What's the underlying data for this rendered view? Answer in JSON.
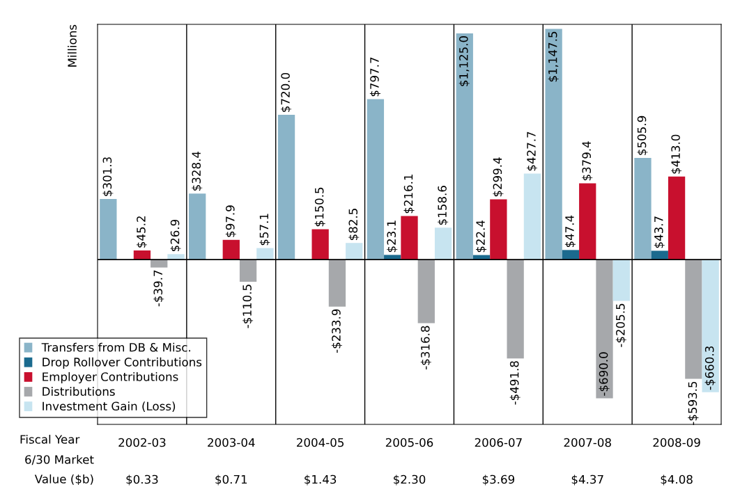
{
  "chart_data": {
    "type": "bar",
    "ylabel": "Millions",
    "xlabel": "Fiscal Year",
    "categories": [
      "2002-03",
      "2003-04",
      "2004-05",
      "2005-06",
      "2006-07",
      "2007-08",
      "2008-09"
    ],
    "series": [
      {
        "name": "Transfers from DB & Misc.",
        "color": "#8ab4c8",
        "values": [
          301.3,
          328.4,
          720.0,
          797.7,
          1125.0,
          1147.5,
          505.9
        ],
        "value_labels": [
          "$301.3",
          "$328.4",
          "$720.0",
          "$797.7",
          "$1,125.0",
          "$1,147.5",
          "$505.9"
        ]
      },
      {
        "name": "Drop Rollover Contributions",
        "color": "#1b6a8e",
        "values": [
          null,
          null,
          null,
          23.1,
          22.4,
          47.4,
          43.7
        ],
        "value_labels": [
          null,
          null,
          null,
          "$23.1",
          "$22.4",
          "$47.4",
          "$43.7"
        ]
      },
      {
        "name": "Employer Contributions",
        "color": "#c8102e",
        "values": [
          45.2,
          97.9,
          150.5,
          216.1,
          299.4,
          379.4,
          413.0
        ],
        "value_labels": [
          "$45.2",
          "$97.9",
          "$150.5",
          "$216.1",
          "$299.4",
          "$379.4",
          "$413.0"
        ]
      },
      {
        "name": "Distributions",
        "color": "#a6a8ab",
        "values": [
          -39.7,
          -110.5,
          -233.9,
          -316.8,
          -491.8,
          -690.0,
          -593.5
        ],
        "value_labels": [
          "-$39.7",
          "-$110.5",
          "-$233.9",
          "-$316.8",
          "-$491.8",
          "-$690.0",
          "-$593.5"
        ]
      },
      {
        "name": "Investment Gain (Loss)",
        "color": "#c7e4f0",
        "values": [
          26.9,
          57.1,
          82.5,
          158.6,
          427.7,
          -205.5,
          -660.3
        ],
        "value_labels": [
          "$26.9",
          "$57.1",
          "$82.5",
          "$158.6",
          "$427.7",
          "-$205.5",
          "-$660.3"
        ]
      }
    ],
    "ylim": [
      -820,
      1170
    ],
    "tick_labels": "x",
    "legend": "bottom left",
    "grid": false,
    "annotations": [
      "6/30 Market Value ($b)",
      "$0.33",
      "$0.71",
      "$1.43",
      "$2.30",
      "$3.69",
      "$4.37",
      "$4.08"
    ]
  }
}
